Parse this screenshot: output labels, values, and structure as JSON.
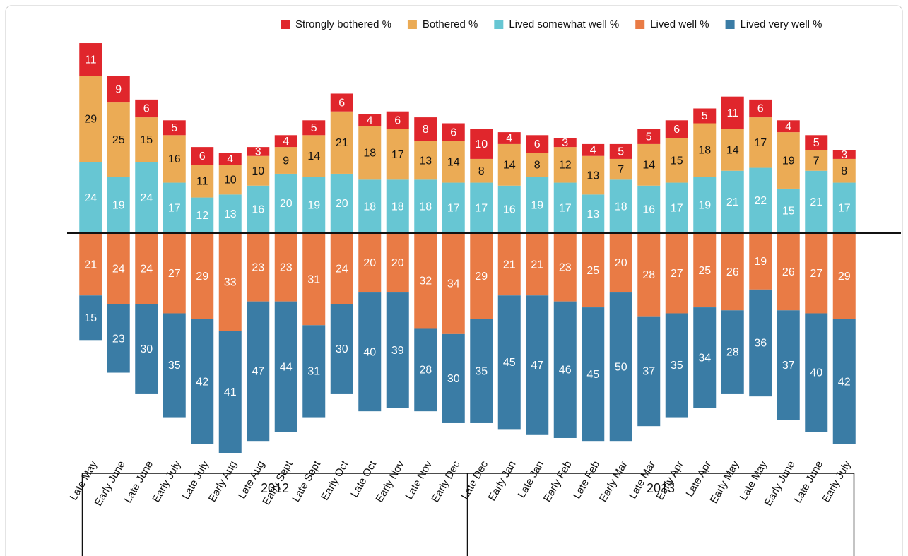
{
  "chart_data": {
    "type": "diverging_stacked_bar",
    "categories": [
      "Late May",
      "Early June",
      "Late June",
      "Early July",
      "Late July",
      "Early Aug",
      "Late Aug",
      "Early Sept",
      "Late Sept",
      "Early Oct",
      "Late Oct",
      "Early Nov",
      "Late Nov",
      "Early Dec",
      "Late Dec",
      "Early Jan",
      "Late Jan",
      "Early Feb",
      "Late Feb",
      "Early Mar",
      "Late Mar",
      "Early Apr",
      "Late Apr",
      "Early May",
      "Late May",
      "Early June",
      "Late June",
      "Early July"
    ],
    "x_groups": [
      {
        "label": "2012",
        "span": 14
      },
      {
        "label": "2013",
        "span": 14
      }
    ],
    "series": [
      {
        "name": "Strongly bothered %",
        "color": "#e0262c",
        "label_color": "#ffffff",
        "side": "above",
        "values": [
          11,
          9,
          6,
          5,
          6,
          4,
          3,
          4,
          5,
          6,
          4,
          6,
          8,
          6,
          10,
          4,
          6,
          3,
          4,
          5,
          5,
          6,
          5,
          11,
          6,
          4,
          5,
          3
        ]
      },
      {
        "name": "Bothered %",
        "color": "#ebab55",
        "label_color": "#111111",
        "side": "above",
        "values": [
          29,
          25,
          15,
          16,
          11,
          10,
          10,
          9,
          14,
          21,
          18,
          17,
          13,
          14,
          8,
          14,
          8,
          12,
          13,
          7,
          14,
          15,
          18,
          14,
          17,
          19,
          7,
          8
        ]
      },
      {
        "name": "Lived somewhat well %",
        "color": "#67c6d3",
        "label_color": "#ffffff",
        "side": "above",
        "values": [
          24,
          19,
          24,
          17,
          12,
          13,
          16,
          20,
          19,
          20,
          18,
          18,
          18,
          17,
          17,
          16,
          19,
          17,
          13,
          18,
          16,
          17,
          19,
          21,
          22,
          15,
          21,
          17
        ]
      },
      {
        "name": "Lived well %",
        "color": "#e97b45",
        "label_color": "#ffffff",
        "side": "below",
        "values": [
          21,
          24,
          24,
          27,
          29,
          33,
          23,
          23,
          31,
          24,
          20,
          20,
          32,
          34,
          29,
          21,
          21,
          23,
          25,
          20,
          28,
          27,
          25,
          26,
          19,
          26,
          27,
          29
        ]
      },
      {
        "name": "Lived very well %",
        "color": "#3a7ca5",
        "label_color": "#ffffff",
        "side": "below",
        "values": [
          15,
          23,
          30,
          35,
          42,
          41,
          47,
          44,
          31,
          30,
          40,
          39,
          28,
          30,
          35,
          45,
          47,
          46,
          45,
          50,
          37,
          35,
          34,
          28,
          36,
          37,
          40,
          42
        ]
      }
    ]
  }
}
